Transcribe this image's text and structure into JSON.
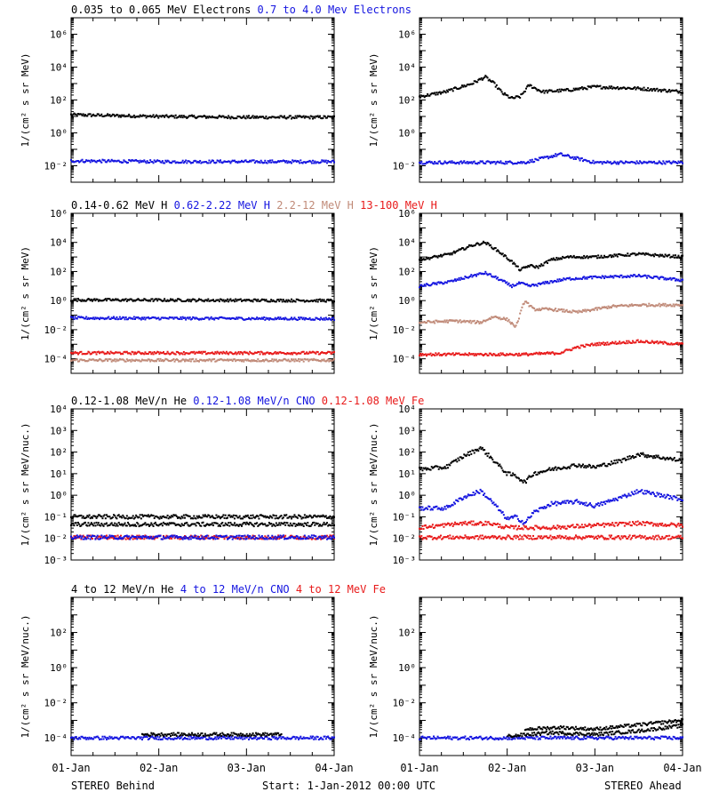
{
  "colors": {
    "black": "#000000",
    "blue": "#1515e0",
    "tan": "#c08a78",
    "red": "#e81a1a"
  },
  "footer": {
    "left": "STEREO Behind",
    "center": "Start:  1-Jan-2012 00:00 UTC",
    "right": "STEREO Ahead"
  },
  "chart_data": [
    {
      "type": "scatter",
      "row": 0,
      "side": "behind",
      "legend": [
        {
          "text": "0.035 to 0.065 MeV Electrons",
          "color": "black"
        },
        {
          "text": "0.7 to 4.0 Mev Electrons",
          "color": "blue"
        }
      ],
      "ylabel": "1/(cm² s sr MeV)",
      "y_scale": "log",
      "ylim_exp": [
        -3,
        7
      ],
      "ytick_exps": [
        -2,
        0,
        2,
        4,
        6
      ],
      "xlim_days": [
        0,
        3
      ],
      "xtick_labels": [
        "01-Jan",
        "02-Jan",
        "03-Jan",
        "04-Jan"
      ],
      "series": [
        {
          "color": "black",
          "x": [
            0,
            1,
            2,
            3
          ],
          "log10": [
            1.1,
            1.0,
            0.95,
            0.95
          ]
        },
        {
          "color": "blue",
          "x": [
            0,
            1,
            2,
            3
          ],
          "log10": [
            -1.7,
            -1.75,
            -1.75,
            -1.75
          ]
        }
      ]
    },
    {
      "type": "scatter",
      "row": 0,
      "side": "ahead",
      "legend": [],
      "ylabel": "1/(cm² s sr MeV)",
      "y_scale": "log",
      "ylim_exp": [
        -3,
        7
      ],
      "ytick_exps": [
        -2,
        0,
        2,
        4,
        6
      ],
      "xlim_days": [
        0,
        3
      ],
      "xtick_labels": [
        "01-Jan",
        "02-Jan",
        "03-Jan",
        "04-Jan"
      ],
      "series": [
        {
          "color": "black",
          "x": [
            0,
            0.3,
            0.6,
            0.75,
            0.85,
            0.95,
            1.05,
            1.15,
            1.25,
            1.4,
            1.7,
            2.0,
            2.5,
            3.0
          ],
          "log10": [
            2.2,
            2.5,
            3.0,
            3.4,
            3.0,
            2.4,
            2.1,
            2.2,
            2.9,
            2.5,
            2.6,
            2.8,
            2.7,
            2.5
          ]
        },
        {
          "color": "blue",
          "x": [
            0,
            1.2,
            1.45,
            1.6,
            1.75,
            2.0,
            3.0
          ],
          "log10": [
            -1.8,
            -1.8,
            -1.5,
            -1.3,
            -1.5,
            -1.8,
            -1.8
          ]
        }
      ]
    },
    {
      "type": "scatter",
      "row": 1,
      "side": "behind",
      "legend": [
        {
          "text": "0.14-0.62 MeV H",
          "color": "black"
        },
        {
          "text": "0.62-2.22 MeV H",
          "color": "blue"
        },
        {
          "text": "2.2-12 MeV H",
          "color": "tan"
        },
        {
          "text": "13-100 MeV H",
          "color": "red"
        }
      ],
      "ylabel": "1/(cm² s sr MeV)",
      "y_scale": "log",
      "ylim_exp": [
        -5,
        6
      ],
      "ytick_exps": [
        -4,
        -2,
        0,
        2,
        4,
        6
      ],
      "xlim_days": [
        0,
        3
      ],
      "xtick_labels": [
        "01-Jan",
        "02-Jan",
        "03-Jan",
        "04-Jan"
      ],
      "series": [
        {
          "color": "black",
          "x": [
            0,
            3
          ],
          "log10": [
            0.05,
            0.0
          ]
        },
        {
          "color": "blue",
          "x": [
            0,
            3
          ],
          "log10": [
            -1.2,
            -1.25
          ]
        },
        {
          "color": "red",
          "x": [
            0,
            3
          ],
          "log10": [
            -3.6,
            -3.6
          ]
        },
        {
          "color": "tan",
          "x": [
            0,
            3
          ],
          "log10": [
            -4.1,
            -4.1
          ]
        }
      ]
    },
    {
      "type": "scatter",
      "row": 1,
      "side": "ahead",
      "legend": [],
      "ylabel": "1/(cm² s sr MeV)",
      "y_scale": "log",
      "ylim_exp": [
        -5,
        6
      ],
      "ytick_exps": [
        -4,
        -2,
        0,
        2,
        4,
        6
      ],
      "xlim_days": [
        0,
        3
      ],
      "xtick_labels": [
        "01-Jan",
        "02-Jan",
        "03-Jan",
        "04-Jan"
      ],
      "series": [
        {
          "color": "black",
          "x": [
            0,
            0.35,
            0.6,
            0.75,
            0.9,
            1.05,
            1.15,
            1.25,
            1.35,
            1.5,
            1.7,
            2.0,
            2.5,
            3.0
          ],
          "log10": [
            2.8,
            3.2,
            3.8,
            4.0,
            3.4,
            2.7,
            2.1,
            2.4,
            2.3,
            2.8,
            3.0,
            3.0,
            3.2,
            3.0
          ]
        },
        {
          "color": "blue",
          "x": [
            0,
            0.35,
            0.6,
            0.75,
            0.9,
            1.05,
            1.15,
            1.25,
            1.35,
            1.5,
            1.7,
            2.0,
            2.5,
            3.0
          ],
          "log10": [
            1.0,
            1.3,
            1.7,
            1.9,
            1.5,
            1.0,
            1.2,
            1.0,
            1.1,
            1.3,
            1.5,
            1.6,
            1.7,
            1.4
          ]
        },
        {
          "color": "tan",
          "x": [
            0,
            0.4,
            0.7,
            0.85,
            1.0,
            1.1,
            1.2,
            1.3,
            1.5,
            1.8,
            2.2,
            2.5,
            3.0
          ],
          "log10": [
            -1.5,
            -1.4,
            -1.5,
            -1.1,
            -1.3,
            -1.8,
            0.0,
            -0.6,
            -0.6,
            -0.8,
            -0.4,
            -0.3,
            -0.3
          ]
        },
        {
          "color": "red",
          "x": [
            0,
            1.0,
            1.2,
            1.6,
            1.8,
            2.0,
            2.5,
            3.0
          ],
          "log10": [
            -3.7,
            -3.7,
            -3.7,
            -3.6,
            -3.2,
            -3.0,
            -2.8,
            -3.0
          ]
        }
      ]
    },
    {
      "type": "scatter",
      "row": 2,
      "side": "behind",
      "legend": [
        {
          "text": "0.12-1.08 MeV/n He",
          "color": "black"
        },
        {
          "text": "0.12-1.08 MeV/n CNO",
          "color": "blue"
        },
        {
          "text": "0.12-1.08 MeV Fe",
          "color": "red"
        }
      ],
      "ylabel": "1/(cm² s sr MeV/nuc.)",
      "y_scale": "log",
      "ylim_exp": [
        -3,
        4
      ],
      "ytick_exps": [
        -3,
        -2,
        -1,
        0,
        1,
        2,
        3,
        4
      ],
      "xlim_days": [
        0,
        3
      ],
      "xtick_labels": [
        "01-Jan",
        "02-Jan",
        "03-Jan",
        "04-Jan"
      ],
      "series": [
        {
          "color": "black",
          "x": [
            0,
            3
          ],
          "log10": [
            -1.35,
            -1.35
          ]
        },
        {
          "color": "black",
          "x": [
            0,
            3
          ],
          "log10": [
            -1.0,
            -1.0
          ]
        },
        {
          "color": "red",
          "x": [
            0,
            3
          ],
          "log10": [
            -1.95,
            -1.95
          ]
        },
        {
          "color": "blue",
          "x": [
            0,
            3
          ],
          "log10": [
            -1.95,
            -1.95
          ]
        }
      ]
    },
    {
      "type": "scatter",
      "row": 2,
      "side": "ahead",
      "legend": [],
      "ylabel": "1/(cm² s sr MeV/nuc.)",
      "y_scale": "log",
      "ylim_exp": [
        -3,
        4
      ],
      "ytick_exps": [
        -3,
        -2,
        -1,
        0,
        1,
        2,
        3,
        4
      ],
      "xlim_days": [
        0,
        3
      ],
      "xtick_labels": [
        "01-Jan",
        "02-Jan",
        "03-Jan",
        "04-Jan"
      ],
      "series": [
        {
          "color": "black",
          "x": [
            0,
            0.3,
            0.5,
            0.7,
            0.85,
            1.0,
            1.1,
            1.2,
            1.3,
            1.5,
            1.8,
            2.0,
            2.3,
            2.5,
            3.0
          ],
          "log10": [
            1.2,
            1.3,
            1.8,
            2.2,
            1.6,
            1.0,
            0.9,
            0.6,
            1.0,
            1.2,
            1.4,
            1.3,
            1.6,
            1.9,
            1.6
          ]
        },
        {
          "color": "blue",
          "x": [
            0,
            0.3,
            0.5,
            0.7,
            0.85,
            1.0,
            1.1,
            1.2,
            1.3,
            1.5,
            1.8,
            2.0,
            2.3,
            2.5,
            3.0
          ],
          "log10": [
            -0.6,
            -0.6,
            -0.1,
            0.2,
            -0.4,
            -1.1,
            -1.0,
            -1.3,
            -0.8,
            -0.4,
            -0.3,
            -0.5,
            -0.1,
            0.2,
            -0.2
          ]
        },
        {
          "color": "red",
          "x": [
            0,
            0.5,
            0.8,
            1.0,
            1.5,
            2.0,
            2.5,
            3.0
          ],
          "log10": [
            -1.5,
            -1.3,
            -1.3,
            -1.5,
            -1.5,
            -1.4,
            -1.3,
            -1.4
          ]
        },
        {
          "color": "red",
          "x": [
            0,
            3
          ],
          "log10": [
            -1.95,
            -1.95
          ]
        }
      ]
    },
    {
      "type": "scatter",
      "row": 3,
      "side": "behind",
      "legend": [
        {
          "text": "4 to 12 MeV/n He",
          "color": "black"
        },
        {
          "text": "4 to 12 MeV/n CNO",
          "color": "blue"
        },
        {
          "text": "4 to 12 MeV Fe",
          "color": "red"
        }
      ],
      "ylabel": "1/(cm² s sr MeV/nuc.)",
      "y_scale": "log",
      "ylim_exp": [
        -5,
        4
      ],
      "ytick_exps": [
        -4,
        -2,
        0,
        2
      ],
      "xlim_days": [
        0,
        3
      ],
      "xtick_labels": [
        "01-Jan",
        "02-Jan",
        "03-Jan",
        "04-Jan"
      ],
      "series": [
        {
          "color": "blue",
          "x": [
            0,
            3
          ],
          "log10": [
            -4.0,
            -4.0
          ]
        },
        {
          "color": "black",
          "x": [
            0.8,
            1.6,
            2.4
          ],
          "log10": [
            -3.8,
            -3.8,
            -3.8
          ]
        }
      ]
    },
    {
      "type": "scatter",
      "row": 3,
      "side": "ahead",
      "legend": [],
      "ylabel": "1/(cm² s sr MeV/nuc.)",
      "y_scale": "log",
      "ylim_exp": [
        -5,
        4
      ],
      "ytick_exps": [
        -4,
        -2,
        0,
        2
      ],
      "xlim_days": [
        0,
        3
      ],
      "xtick_labels": [
        "01-Jan",
        "02-Jan",
        "03-Jan",
        "04-Jan"
      ],
      "series": [
        {
          "color": "blue",
          "x": [
            0,
            3
          ],
          "log10": [
            -4.0,
            -4.0
          ]
        },
        {
          "color": "black",
          "x": [
            1.0,
            1.5,
            2.0,
            2.5,
            3.0
          ],
          "log10": [
            -3.9,
            -3.7,
            -3.8,
            -3.6,
            -3.3
          ]
        },
        {
          "color": "black",
          "x": [
            1.2,
            1.6,
            2.0,
            2.4,
            2.8,
            3.0
          ],
          "log10": [
            -3.5,
            -3.4,
            -3.5,
            -3.3,
            -3.1,
            -3.0
          ]
        }
      ]
    }
  ]
}
